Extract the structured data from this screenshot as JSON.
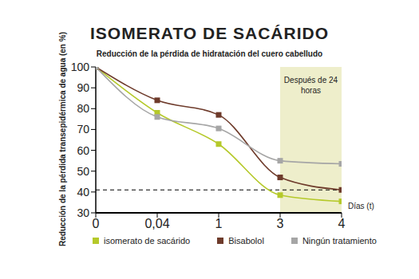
{
  "chart_data": {
    "type": "line",
    "title": "ISOMERATO DE SACÁRIDO",
    "subtitle": "Reducción de la pérdida de hidratación del cuero cabelludo",
    "x_label": "Días (t)",
    "y_label": "Reducción de la pérdida transepidérmica de agua (en %)",
    "categories": [
      "0",
      "0,04",
      "1",
      "3",
      "4"
    ],
    "series": [
      {
        "name": "isomerato de sacárido",
        "color": "#b5c92a",
        "marker": "square",
        "values": [
          100,
          78,
          63,
          38.5,
          35.5
        ]
      },
      {
        "name": "Bisabolol",
        "color": "#6e3b2b",
        "marker": "square",
        "values": [
          100,
          84,
          77,
          47,
          41
        ]
      },
      {
        "name": "Ningún tratamiento",
        "color": "#a6a6a6",
        "marker": "square",
        "values": [
          100,
          76,
          70.5,
          55,
          53.5
        ]
      }
    ],
    "ylim": [
      30,
      100
    ],
    "yticks": [
      30,
      40,
      50,
      60,
      70,
      80,
      90,
      100
    ],
    "grid": false,
    "annotations": [
      {
        "text": "Después de 24 horas",
        "x_start": "3",
        "x_end": "4"
      }
    ],
    "reference_lines": [
      {
        "y": 41,
        "line_style": "dashed"
      }
    ]
  }
}
